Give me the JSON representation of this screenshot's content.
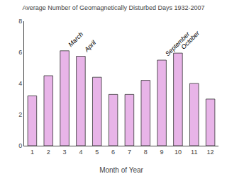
{
  "chart_data": {
    "type": "bar",
    "title": "Average Number of Geomagnetically Disturbed Days 1932-2007",
    "xlabel": "Month of Year",
    "x": [
      1,
      2,
      3,
      4,
      5,
      6,
      7,
      8,
      9,
      10,
      11,
      12
    ],
    "values": [
      3.2,
      4.5,
      6.1,
      5.75,
      4.4,
      3.3,
      3.3,
      4.2,
      5.5,
      5.95,
      4.0,
      3.0
    ],
    "color": "#e8b4e8",
    "xlim": [
      0.5,
      12.5
    ],
    "xticks": [
      1,
      2,
      3,
      4,
      5,
      6,
      7,
      8,
      9,
      10,
      11,
      12
    ],
    "ylim": [
      0,
      8
    ],
    "yticks": [
      0,
      2,
      4,
      6,
      8
    ],
    "grid": false,
    "annotations": [
      {
        "x": 3,
        "text": "March"
      },
      {
        "x": 4,
        "text": "April"
      },
      {
        "x": 9,
        "text": "September"
      },
      {
        "x": 10,
        "text": "October"
      }
    ]
  }
}
